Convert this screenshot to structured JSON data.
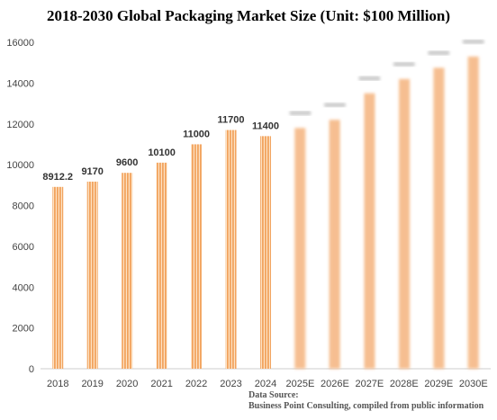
{
  "chart_data": {
    "type": "bar",
    "title": "2018-2030 Global Packaging Market Size (Unit: $100 Million)",
    "xlabel": "",
    "ylabel": "",
    "ylim": [
      0,
      16000
    ],
    "yticks": [
      0,
      2000,
      4000,
      6000,
      8000,
      10000,
      12000,
      14000,
      16000
    ],
    "categories": [
      "2018",
      "2019",
      "2020",
      "2021",
      "2022",
      "2023",
      "2024",
      "2025E",
      "2026E",
      "2027E",
      "2028E",
      "2029E",
      "2030E"
    ],
    "values": [
      8912.2,
      9170,
      9600,
      10100,
      11000,
      11700,
      11400,
      11800,
      12200,
      13500,
      14200,
      14750,
      15300
    ],
    "data_labels": [
      "8912.2",
      "9170",
      "9600",
      "10100",
      "11000",
      "11700",
      "11400",
      "",
      "",
      "",
      "",
      "",
      ""
    ],
    "bar_color": "#f2a35e",
    "bar_stripe_color": "#fde2c4",
    "legend": "none",
    "grid": false
  },
  "source": {
    "line1": "Data Source:",
    "line2": "Business Point Consulting, compiled from public information"
  }
}
